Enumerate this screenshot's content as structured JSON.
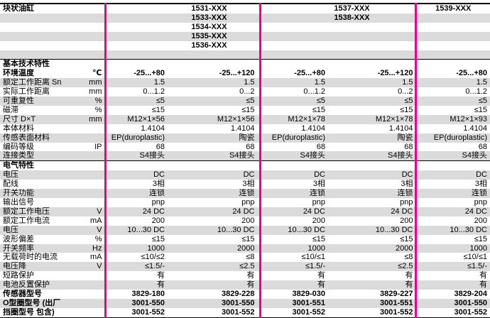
{
  "colors": {
    "accent_pink": "#ec008c",
    "row_stripe": "#dbdbdb",
    "rule_line": "#000000"
  },
  "header": {
    "title": "块状油缸",
    "model_rows": [
      [
        "1531-XXX",
        "1537-XXX",
        "1539-XXX"
      ],
      [
        "1533-XXX",
        "1538-XXX",
        ""
      ],
      [
        "1534-XXX",
        "",
        ""
      ],
      [
        "1535-XXX",
        "",
        ""
      ],
      [
        "1536-XXX",
        "",
        ""
      ],
      [
        "",
        "",
        ""
      ]
    ]
  },
  "sections": [
    {
      "title": "基本技术特性",
      "rows": [
        {
          "label": "环境温度",
          "unit": "℃",
          "bold": true,
          "values": [
            "-25...+80",
            "-25...+120",
            "-25...+80",
            "-25...+120",
            "-25...+80"
          ]
        },
        {
          "label": "额定工作距离 Sn",
          "unit": "mm",
          "values": [
            "1.5",
            "1.5",
            "1.5",
            "1.5",
            "1.5"
          ]
        },
        {
          "label": "实际工作距离",
          "unit": "mm",
          "values": [
            "0...1.2",
            "0...2",
            "0...1.2",
            "0...2",
            "0...1.2"
          ]
        },
        {
          "label": "可重复性",
          "unit": "%",
          "values": [
            "≤5",
            "≤5",
            "≤5",
            "≤5",
            "≤5"
          ]
        },
        {
          "label": "磁滞",
          "unit": "%",
          "values": [
            "≤15",
            "≤15",
            "≤15",
            "≤15",
            "≤15"
          ]
        },
        {
          "label": "尺寸 D×T",
          "unit": "mm",
          "values": [
            "M12×1×56",
            "M12×1×56",
            "M12×1×78",
            "M12×1×78",
            "M12×1×93"
          ]
        },
        {
          "label": "本体材料",
          "unit": "",
          "values": [
            "1.4104",
            "1.4104",
            "1.4104",
            "1.4104",
            "1.4104"
          ]
        },
        {
          "label": "传感表面材料",
          "unit": "",
          "values": [
            "EP(duroplastic)",
            "陶瓷",
            "EP(duroplastic)",
            "陶瓷",
            "EP(duroplastic)"
          ]
        },
        {
          "label": "编码等级",
          "unit": "IP",
          "values": [
            "68",
            "68",
            "68",
            "68",
            "68"
          ]
        },
        {
          "label": "连接类型",
          "unit": "",
          "values": [
            "S4接头",
            "S4接头",
            "S4接头",
            "S4接头",
            "S4接头"
          ]
        }
      ]
    },
    {
      "title": "电气特性",
      "rows": [
        {
          "label": "电压",
          "unit": "",
          "values": [
            "DC",
            "DC",
            "DC",
            "DC",
            "DC"
          ]
        },
        {
          "label": "配线",
          "unit": "",
          "values": [
            "3相",
            "3相",
            "3相",
            "3相",
            "3相"
          ]
        },
        {
          "label": "开关功能",
          "unit": "",
          "values": [
            "连锁",
            "连锁",
            "连锁",
            "连锁",
            "连锁"
          ]
        },
        {
          "label": "输出信号",
          "unit": "",
          "values": [
            "pnp",
            "pnp",
            "pnp",
            "pnp",
            "pnp"
          ]
        },
        {
          "label": "额定工作电压",
          "unit": "V",
          "values": [
            "24 DC",
            "24 DC",
            "24 DC",
            "24 DC",
            "24 DC"
          ]
        },
        {
          "label": "额定工作电流",
          "unit": "mA",
          "values": [
            "200",
            "200",
            "200",
            "200",
            "200"
          ]
        },
        {
          "label": "电压",
          "unit": "V",
          "values": [
            "10...30 DC",
            "10...30 DC",
            "10...30 DC",
            "10...30 DC",
            "10...30 DC"
          ]
        },
        {
          "label": "波形偏差",
          "unit": "%",
          "values": [
            "≤15",
            "≤15",
            "≤15",
            "≤15",
            "≤15"
          ]
        },
        {
          "label": "开关频率",
          "unit": "Hz",
          "values": [
            "1000",
            "2000",
            "1000",
            "2000",
            "1000"
          ]
        },
        {
          "label": "无载荷时的电流",
          "unit": "mA",
          "values": [
            "≤10/≤2",
            "≤8",
            "≤10/≤1",
            "≤8",
            "≤10/≤1"
          ]
        },
        {
          "label": "电压降",
          "unit": "V",
          "values": [
            "≤1.5/-",
            "≤2.5",
            "≤1.5/-",
            "≤2.5",
            "≤1.5/-"
          ]
        },
        {
          "label": "短路保护",
          "unit": "",
          "values": [
            "有",
            "有",
            "有",
            "有",
            "有"
          ]
        },
        {
          "label": "电池反置保护",
          "unit": "",
          "values": [
            "有",
            "有",
            "有",
            "有",
            "有"
          ]
        },
        {
          "label": "传感器型号",
          "unit": "",
          "bold": true,
          "values": [
            "3829-180",
            "3829-228",
            "3829-030",
            "3829-227",
            "3829-204"
          ]
        },
        {
          "label": "O型圈型号  (出厂",
          "unit": "",
          "bold": true,
          "values": [
            "3001-550",
            "3001-550",
            "3001-551",
            "3001-551",
            "3001-550"
          ]
        },
        {
          "label": "挡圈型号   包含)",
          "unit": "",
          "bold": true,
          "values": [
            "3001-552",
            "3001-552",
            "3001-552",
            "3001-552",
            "3001-552"
          ]
        }
      ]
    }
  ]
}
